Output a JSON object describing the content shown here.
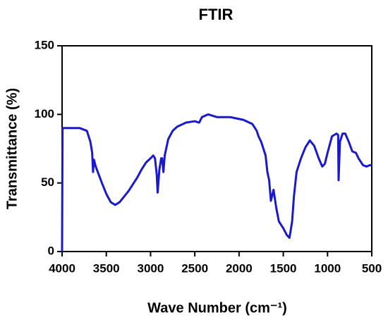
{
  "chart_data": {
    "type": "line",
    "title": "FTIR",
    "xlabel": "Wave Number (cm⁻¹)",
    "ylabel": "Transmittance (%)",
    "x": [
      4000,
      3995,
      3800,
      3720,
      3680,
      3660,
      3650,
      3640,
      3620,
      3550,
      3500,
      3450,
      3400,
      3350,
      3250,
      3150,
      3100,
      3050,
      3000,
      2970,
      2950,
      2930,
      2920,
      2900,
      2880,
      2870,
      2855,
      2840,
      2800,
      2750,
      2700,
      2600,
      2500,
      2450,
      2420,
      2350,
      2250,
      2100,
      1950,
      1850,
      1800,
      1780,
      1750,
      1700,
      1680,
      1660,
      1640,
      1610,
      1580,
      1550,
      1500,
      1460,
      1430,
      1400,
      1380,
      1350,
      1300,
      1250,
      1200,
      1150,
      1100,
      1060,
      1030,
      1000,
      950,
      900,
      880,
      875,
      860,
      830,
      800,
      760,
      720,
      680,
      650,
      600,
      560,
      520,
      500
    ],
    "series": [
      {
        "name": "FTIR",
        "color": "#1a1acc",
        "values": [
          0,
          90,
          90,
          88,
          80,
          72,
          58,
          67,
          62,
          50,
          42,
          36,
          34,
          36,
          44,
          54,
          60,
          65,
          68,
          70,
          68,
          56,
          43,
          60,
          68,
          68,
          58,
          70,
          82,
          88,
          91,
          94,
          95,
          94,
          98,
          100,
          98,
          98,
          96,
          93,
          88,
          84,
          80,
          70,
          58,
          52,
          37,
          45,
          32,
          22,
          17,
          12,
          10,
          22,
          40,
          58,
          68,
          76,
          81,
          77,
          68,
          62,
          64,
          72,
          84,
          86,
          85,
          52,
          80,
          86,
          86,
          80,
          73,
          72,
          68,
          63,
          62,
          63,
          63
        ]
      }
    ],
    "xlim": [
      4000,
      500
    ],
    "xticks": [
      4000,
      3500,
      3000,
      2500,
      2000,
      1500,
      1000,
      500
    ],
    "ylim": [
      0,
      150
    ],
    "yticks": [
      0,
      50,
      100,
      150
    ]
  }
}
